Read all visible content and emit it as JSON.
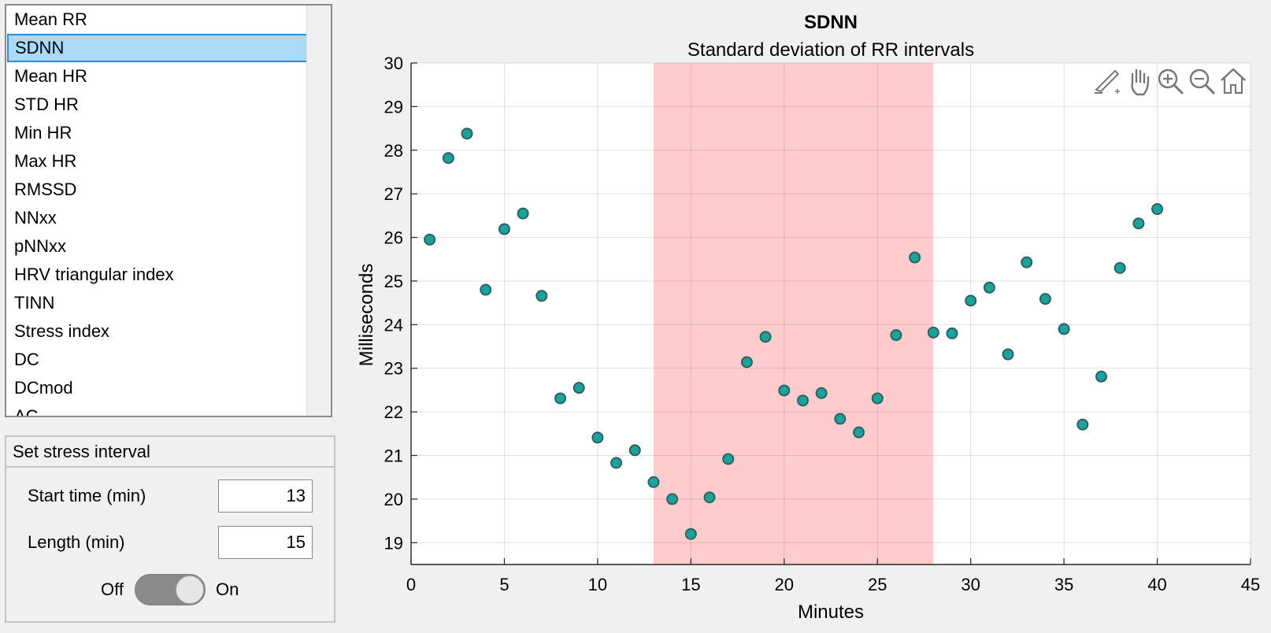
{
  "metric_list": {
    "items": [
      "Mean RR",
      "SDNN",
      "Mean HR",
      "STD HR",
      "Min HR",
      "Max HR",
      "RMSSD",
      "NNxx",
      "pNNxx",
      "HRV triangular index",
      "TINN",
      "Stress index",
      "DC",
      "DCmod",
      "AC"
    ],
    "selected": "SDNN"
  },
  "stress_panel": {
    "title": "Set stress interval",
    "start_label": "Start time (min)",
    "start_value": "13",
    "length_label": "Length (min)",
    "length_value": "15",
    "switch_off_label": "Off",
    "switch_on_label": "On",
    "switch_state": "on"
  },
  "toolbar": {
    "icons": [
      "brush-icon",
      "pan-icon",
      "zoom-in-icon",
      "zoom-out-icon",
      "home-icon"
    ]
  },
  "chart_data": {
    "type": "scatter",
    "title": "SDNN",
    "subtitle": "Standard deviation of RR intervals",
    "xlabel": "Minutes",
    "ylabel": "Milliseconds",
    "xlim": [
      0,
      45
    ],
    "ylim": [
      18.5,
      30
    ],
    "xticks": [
      0,
      5,
      10,
      15,
      20,
      25,
      30,
      35,
      40,
      45
    ],
    "yticks": [
      19,
      20,
      21,
      22,
      23,
      24,
      25,
      26,
      27,
      28,
      29,
      30
    ],
    "grid": true,
    "shaded_interval": {
      "start": 13,
      "end": 28,
      "color": "#ffcccd"
    },
    "marker_color": "#1aa39c",
    "marker_edge": "#2f5f5f",
    "x": [
      1,
      2,
      3,
      4,
      5,
      6,
      7,
      8,
      9,
      10,
      11,
      12,
      13,
      14,
      15,
      16,
      17,
      18,
      19,
      20,
      21,
      22,
      23,
      24,
      25,
      26,
      27,
      28,
      29,
      30,
      31,
      32,
      33,
      34,
      35,
      36,
      37,
      38,
      39,
      40
    ],
    "y": [
      25.95,
      27.82,
      28.38,
      24.8,
      26.19,
      26.55,
      24.66,
      22.31,
      22.55,
      21.41,
      20.83,
      21.12,
      20.39,
      20.0,
      19.2,
      20.04,
      20.92,
      23.14,
      23.72,
      22.49,
      22.26,
      22.43,
      21.84,
      21.53,
      22.31,
      23.76,
      25.54,
      23.82,
      23.8,
      24.55,
      24.85,
      23.32,
      25.43,
      24.59,
      23.9,
      21.71,
      22.81,
      25.3,
      26.32,
      26.65
    ]
  }
}
